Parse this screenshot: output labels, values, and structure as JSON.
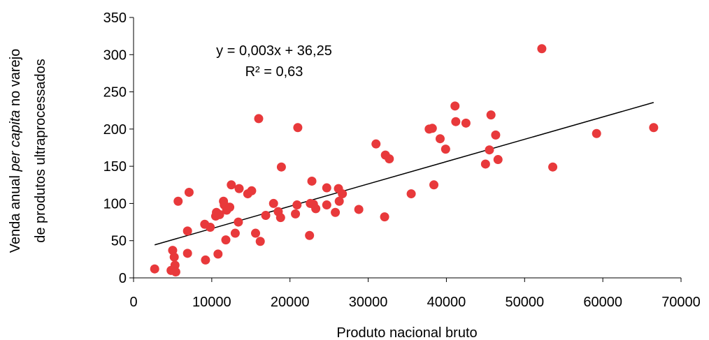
{
  "chart_data": {
    "type": "scatter",
    "xlabel": "Produto nacional bruto",
    "ylabel_line1_parts": [
      "Venda anual ",
      "per capita",
      " no varejo"
    ],
    "ylabel_line2": "de produtos ultraprocessados",
    "xlim": [
      0,
      70000
    ],
    "ylim": [
      0,
      350
    ],
    "x_ticks": [
      0,
      10000,
      20000,
      30000,
      40000,
      50000,
      60000,
      70000
    ],
    "y_ticks": [
      0,
      50,
      100,
      150,
      200,
      250,
      300,
      350
    ],
    "grid": false,
    "legend": "none",
    "point_color": "#e8393b",
    "line_color": "#000000",
    "trendline": {
      "equation": "y = 0,003x + 36,25",
      "r2": "R² = 0,63",
      "slope": 0.003,
      "intercept": 36.25,
      "x_range": [
        2700,
        66500
      ]
    },
    "points": [
      [
        2700,
        12
      ],
      [
        4800,
        10
      ],
      [
        5000,
        37
      ],
      [
        5200,
        28
      ],
      [
        5300,
        17
      ],
      [
        5400,
        8
      ],
      [
        5700,
        103
      ],
      [
        6900,
        63
      ],
      [
        6900,
        33
      ],
      [
        7100,
        115
      ],
      [
        9100,
        72
      ],
      [
        9200,
        24
      ],
      [
        9800,
        68
      ],
      [
        10500,
        83
      ],
      [
        10600,
        88
      ],
      [
        10800,
        32
      ],
      [
        11000,
        85
      ],
      [
        11500,
        103
      ],
      [
        11600,
        98
      ],
      [
        11800,
        51
      ],
      [
        11900,
        91
      ],
      [
        12300,
        95
      ],
      [
        12500,
        125
      ],
      [
        13000,
        60
      ],
      [
        13400,
        75
      ],
      [
        13500,
        120
      ],
      [
        14600,
        113
      ],
      [
        15100,
        117
      ],
      [
        15600,
        60
      ],
      [
        16000,
        214
      ],
      [
        16200,
        49
      ],
      [
        16900,
        84
      ],
      [
        17900,
        100
      ],
      [
        18500,
        89
      ],
      [
        18800,
        81
      ],
      [
        18900,
        149
      ],
      [
        20700,
        86
      ],
      [
        20900,
        98
      ],
      [
        21000,
        202
      ],
      [
        22500,
        57
      ],
      [
        22600,
        100
      ],
      [
        22800,
        130
      ],
      [
        23000,
        99
      ],
      [
        23300,
        93
      ],
      [
        24700,
        121
      ],
      [
        24700,
        98
      ],
      [
        25800,
        88
      ],
      [
        26200,
        120
      ],
      [
        26300,
        103
      ],
      [
        26700,
        113
      ],
      [
        28800,
        92
      ],
      [
        31000,
        180
      ],
      [
        32100,
        82
      ],
      [
        32200,
        165
      ],
      [
        32700,
        160
      ],
      [
        35500,
        113
      ],
      [
        37800,
        200
      ],
      [
        38200,
        201
      ],
      [
        38400,
        125
      ],
      [
        39200,
        187
      ],
      [
        39900,
        173
      ],
      [
        41100,
        231
      ],
      [
        41200,
        210
      ],
      [
        42500,
        208
      ],
      [
        45000,
        153
      ],
      [
        45500,
        172
      ],
      [
        45700,
        219
      ],
      [
        46300,
        192
      ],
      [
        46600,
        159
      ],
      [
        52200,
        308
      ],
      [
        53600,
        149
      ],
      [
        59200,
        194
      ],
      [
        66500,
        202
      ]
    ]
  }
}
